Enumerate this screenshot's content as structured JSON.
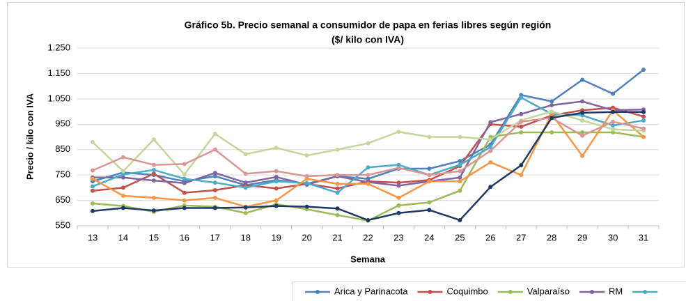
{
  "chart_data": {
    "type": "line",
    "title": "Gráfico 5b. Precio semanal a consumidor de papa en ferias libres según región",
    "subtitle": "($/ kilo con IVA)",
    "y_label": "Precio / kilo con IVA",
    "x_label": "Semana",
    "categories": [
      "13",
      "14",
      "15",
      "16",
      "17",
      "18",
      "19",
      "20",
      "21",
      "22",
      "23",
      "24",
      "25",
      "26",
      "27",
      "28",
      "29",
      "30",
      "31"
    ],
    "ylim": [
      550,
      1250
    ],
    "yticks": [
      550,
      650,
      750,
      850,
      950,
      {
        "value": 1050,
        "label": "1.050"
      },
      {
        "value": 1150,
        "label": "1.150"
      },
      {
        "value": 1250,
        "label": "1.250"
      }
    ],
    "grid": true,
    "legend": "bottom",
    "series": [
      {
        "name": "Arica y Parinacota",
        "color": "#4f81bd",
        "values": [
          725,
          760,
          750,
          725,
          745,
          710,
          730,
          715,
          745,
          735,
          775,
          775,
          805,
          870,
          1065,
          1040,
          1125,
          1070,
          1165
        ]
      },
      {
        "name": "Coquimbo",
        "color": "#c0504d",
        "values": [
          688,
          700,
          755,
          680,
          690,
          710,
          697,
          715,
          697,
          725,
          720,
          730,
          785,
          950,
          940,
          985,
          1005,
          1015,
          980
        ]
      },
      {
        "name": "Valparaíso",
        "color": "#9bbb59",
        "values": [
          638,
          628,
          605,
          630,
          625,
          600,
          635,
          615,
          592,
          570,
          630,
          642,
          688,
          900,
          918,
          918,
          918,
          918,
          900
        ]
      },
      {
        "name": "RM",
        "color": "#8064a2",
        "values": [
          740,
          740,
          728,
          718,
          758,
          720,
          742,
          712,
          745,
          722,
          708,
          725,
          740,
          958,
          990,
          1025,
          1040,
          1005,
          1008
        ]
      },
      {
        "color": "#4bacc6",
        "values": [
          705,
          752,
          770,
          735,
          720,
          700,
          725,
          718,
          680,
          780,
          790,
          750,
          790,
          860,
          1055,
          990,
          985,
          945,
          965
        ]
      },
      {
        "color": "#f79646",
        "values": [
          735,
          668,
          660,
          650,
          660,
          625,
          650,
          735,
          715,
          715,
          660,
          725,
          725,
          800,
          750,
          990,
          825,
          1005,
          900
        ]
      },
      {
        "color": "#c3d69b",
        "values": [
          880,
          765,
          890,
          752,
          912,
          832,
          857,
          827,
          850,
          875,
          920,
          900,
          900,
          890,
          965,
          1000,
          965,
          930,
          925
        ]
      },
      {
        "color": "#d99694",
        "values": [
          768,
          820,
          790,
          793,
          850,
          755,
          765,
          745,
          750,
          750,
          778,
          750,
          765,
          845,
          960,
          975,
          905,
          960,
          933
        ]
      },
      {
        "color": "#1f3864",
        "values": [
          608,
          620,
          610,
          620,
          620,
          622,
          628,
          625,
          618,
          572,
          600,
          612,
          572,
          703,
          788,
          975,
          995,
          998,
          998
        ]
      }
    ]
  }
}
